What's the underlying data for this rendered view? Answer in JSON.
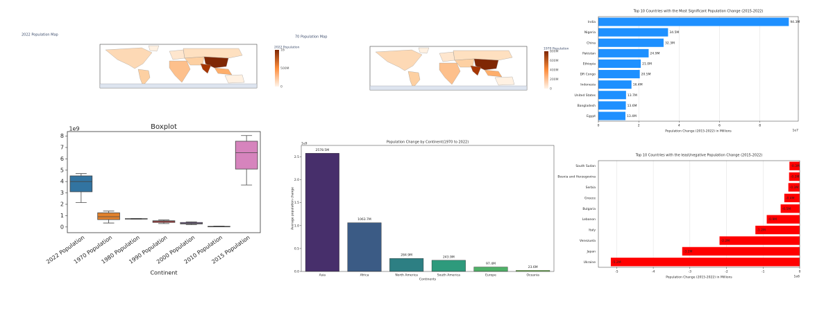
{
  "chart_data": [
    {
      "type": "map",
      "title": "2022 Population Map",
      "colorbar_label": "2022 Population",
      "colorbar_ticks": [
        "1B",
        "500M",
        "0"
      ]
    },
    {
      "type": "map",
      "title": "70 Population Map",
      "colorbar_label": "1970 Population",
      "colorbar_ticks": [
        "800M",
        "600M",
        "400M",
        "200M",
        "0"
      ]
    },
    {
      "type": "hbar",
      "title": "Top 10 Countries with the Most Significant Population Change (2015-2022)",
      "categories": [
        "India",
        "Nigeria",
        "China",
        "Pakistan",
        "Ethiopia",
        "DR Congo",
        "Indonesia",
        "United States",
        "Bangladesh",
        "Egypt"
      ],
      "values": [
        9.43,
        3.45,
        3.23,
        2.49,
        2.1,
        2.05,
        1.64,
        1.37,
        1.36,
        1.34
      ],
      "value_labels": [
        "94.3M",
        "34.5M",
        "32.3M",
        "24.9M",
        "21.0M",
        "20.5M",
        "16.4M",
        "13.7M",
        "13.6M",
        "13.4M"
      ],
      "color": "#1e90ff",
      "xlim": [
        0,
        9.9
      ],
      "xticks": [
        0,
        2,
        4,
        6,
        8
      ],
      "axis_offset": "1e7",
      "xlabel": "Population Change (2015-2022) in Millions",
      "grid": true
    },
    {
      "type": "hbar",
      "title": "Top 10 Countries with the least/negative Population Change (2015-2022)",
      "categories": [
        "South Sudan",
        "Bosnia and Herzegovina",
        "Serbia",
        "Greece",
        "Bulgaria",
        "Lebanon",
        "Italy",
        "Venezuela",
        "Japan",
        "Ukraine"
      ],
      "values": [
        -0.28,
        -0.29,
        -0.31,
        -0.42,
        -0.52,
        -0.9,
        -1.21,
        -2.19,
        -3.21,
        -5.16
      ],
      "value_labels": [
        "-0.3M",
        "-0.3M",
        "-0.3M",
        "-0.4M",
        "-0.5M",
        "-0.9M",
        "-1.2M",
        "-2.2M",
        "-3.2M",
        "-5.2M"
      ],
      "color": "#ff0000",
      "xlim": [
        -5.5,
        0
      ],
      "xticks": [
        -5,
        -4,
        -3,
        -2,
        -1,
        0
      ],
      "axis_offset": "1e6",
      "xlabel": "Population Change (2015-2022) in Millions",
      "grid": true
    },
    {
      "type": "bar",
      "title": "Population Change by Continent(1970 to 2022)",
      "categories": [
        "Asia",
        "Africa",
        "North America",
        "South America",
        "Europe",
        "Oceania"
      ],
      "values": [
        2.5785,
        1.0637,
        0.2849,
        0.2439,
        0.0974,
        0.0236
      ],
      "value_labels": [
        "2578.5M",
        "1063.7M",
        "284.9M",
        "243.9M",
        "97.4M",
        "23.6M"
      ],
      "colors": [
        "#472f6b",
        "#3b5b85",
        "#2d7f83",
        "#2e9a7c",
        "#4fb068",
        "#7dc95c"
      ],
      "ylim": [
        0,
        2.75
      ],
      "yticks": [
        {
          "value": 0,
          "label": "0.0"
        },
        0.5,
        {
          "value": 1,
          "label": "1.0"
        },
        1.5,
        {
          "value": 2,
          "label": "2.0"
        },
        2.5
      ],
      "axis_offset": "1e9",
      "xlabel": "Continents",
      "ylabel": "Average population change"
    },
    {
      "type": "box",
      "title": "Boxplot",
      "categories": [
        "2022 Population",
        "1970 Population",
        "1980 Population",
        "1990 Population",
        "2000 Population",
        "2010 Population",
        "2015 Population"
      ],
      "boxes": [
        {
          "whislo": 2.15,
          "q1": 3.1,
          "med": 4.0,
          "q3": 4.5,
          "whishi": 4.7
        },
        {
          "whislo": 0.35,
          "q1": 0.65,
          "med": 0.9,
          "q3": 1.25,
          "whishi": 1.4
        },
        {
          "whislo": 0.68,
          "q1": 0.7,
          "med": 0.72,
          "q3": 0.74,
          "whishi": 0.75
        },
        {
          "whislo": 0.3,
          "q1": 0.4,
          "med": 0.5,
          "q3": 0.55,
          "whishi": 0.62
        },
        {
          "whislo": 0.2,
          "q1": 0.27,
          "med": 0.33,
          "q3": 0.4,
          "whishi": 0.45
        },
        {
          "whislo": 0.03,
          "q1": 0.04,
          "med": 0.05,
          "q3": 0.06,
          "whishi": 0.08
        },
        {
          "whislo": 3.7,
          "q1": 5.1,
          "med": 6.55,
          "q3": 7.55,
          "whishi": 8.05
        }
      ],
      "colors": [
        "#3274a1",
        "#e1812c",
        "#3a923a",
        "#c03d3e",
        "#9372b2",
        "#845b53",
        "#d684bd"
      ],
      "ylim": [
        -0.5,
        8.4
      ],
      "yticks": [
        0,
        1,
        2,
        3,
        4,
        5,
        6,
        7,
        8
      ],
      "axis_offset": "1e9",
      "xlabel": "Continent"
    }
  ]
}
